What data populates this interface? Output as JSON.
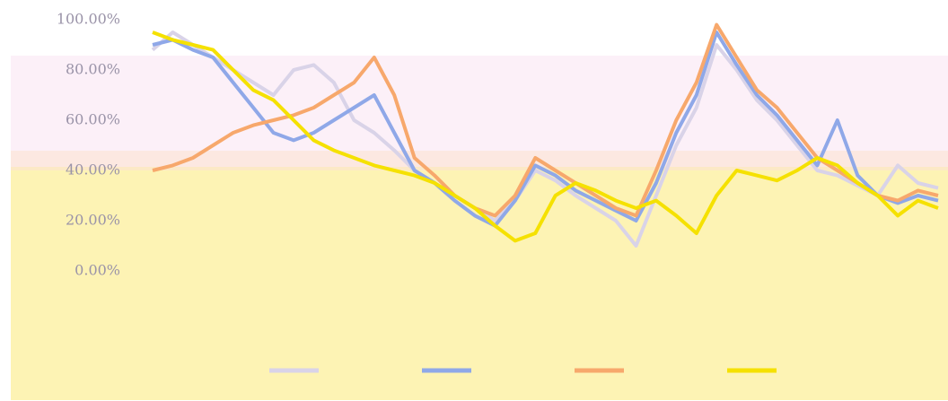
{
  "chart_data": {
    "type": "line",
    "categories": [
      null,
      null,
      null,
      null,
      null,
      null,
      null,
      null,
      null,
      null,
      null,
      null,
      null,
      null,
      null,
      null,
      null,
      null,
      null,
      null,
      null,
      null,
      null,
      null,
      null,
      null,
      null,
      null,
      null,
      null,
      null,
      null,
      null,
      null,
      null,
      null,
      null,
      null,
      null,
      null
    ],
    "series": [
      {
        "color": "#d9d3e8",
        "values": [
          88,
          95,
          90,
          85,
          80,
          75,
          70,
          80,
          82,
          75,
          60,
          55,
          48,
          40,
          35,
          30,
          25,
          20,
          28,
          40,
          36,
          30,
          25,
          20,
          10,
          30,
          50,
          65,
          90,
          80,
          68,
          60,
          50,
          40,
          38,
          34,
          30,
          42,
          35,
          33
        ]
      },
      {
        "color": "#8fa8e8",
        "values": [
          90,
          92,
          88,
          85,
          75,
          65,
          55,
          52,
          55,
          60,
          65,
          70,
          55,
          40,
          35,
          28,
          22,
          18,
          28,
          42,
          38,
          32,
          28,
          24,
          20,
          35,
          55,
          70,
          95,
          82,
          70,
          62,
          52,
          42,
          60,
          38,
          30,
          27,
          30,
          28
        ]
      },
      {
        "color": "#f7a86c",
        "values": [
          40,
          42,
          45,
          50,
          55,
          58,
          60,
          62,
          65,
          70,
          75,
          85,
          70,
          45,
          38,
          30,
          25,
          22,
          30,
          45,
          40,
          35,
          30,
          25,
          22,
          40,
          60,
          75,
          98,
          85,
          72,
          65,
          55,
          45,
          40,
          35,
          30,
          28,
          32,
          30
        ]
      },
      {
        "color": "#f5e100",
        "values": [
          95,
          92,
          90,
          88,
          80,
          72,
          68,
          60,
          52,
          48,
          45,
          42,
          40,
          38,
          35,
          30,
          25,
          18,
          12,
          15,
          30,
          35,
          32,
          28,
          25,
          28,
          22,
          15,
          30,
          40,
          38,
          36,
          40,
          45,
          42,
          35,
          30,
          22,
          28,
          25
        ]
      }
    ],
    "ylim": [
      0,
      100
    ],
    "yticks": [
      {
        "value": 100,
        "label": "100.00%"
      },
      {
        "value": 80,
        "label": "80.00%"
      },
      {
        "value": 60,
        "label": "60.00%"
      },
      {
        "value": 40,
        "label": "40.00%"
      },
      {
        "value": 20,
        "label": "20.00%"
      },
      {
        "value": 0,
        "label": "0.00%"
      }
    ],
    "grid": false
  }
}
